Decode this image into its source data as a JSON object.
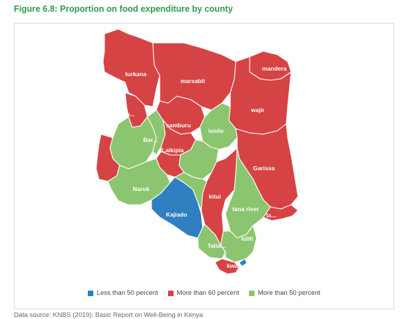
{
  "figure": {
    "title": "Figure 6.8: Proportion on food expenditure by county"
  },
  "colors": {
    "less_than_50": "#2f7fc1",
    "more_than_60": "#d64345",
    "more_than_50": "#8cc56f"
  },
  "map": {
    "labels": {
      "turkana": "turkana",
      "marsabit": "marsabit",
      "mandera": "mandera",
      "wajir": "wajir",
      "samburu": "samburu",
      "isiolo": "isiolo",
      "west_pokot": "w...",
      "baringo": "Bar...",
      "laikipia": "Laikipia",
      "garissa": "Garissa",
      "narok": "Narok",
      "kitui": "kitui",
      "tana_river": "tana river",
      "lamu": "la...",
      "kajiado": "Kajiado",
      "kilifi": "kilifi",
      "taita": "Taita...",
      "kwale": "kwale"
    }
  },
  "chart_data": {
    "type": "choropleth",
    "categories": [
      {
        "name": "Less than 50 percent",
        "color": "#2f7fc1"
      },
      {
        "name": "More than 60 percent",
        "color": "#d64345"
      },
      {
        "name": "More than 50 percent",
        "color": "#8cc56f"
      }
    ],
    "regions": [
      {
        "name": "turkana",
        "category": "More than 60 percent"
      },
      {
        "name": "marsabit",
        "category": "More than 60 percent"
      },
      {
        "name": "mandera",
        "category": "More than 60 percent"
      },
      {
        "name": "wajir",
        "category": "More than 60 percent"
      },
      {
        "name": "samburu",
        "category": "More than 60 percent"
      },
      {
        "name": "isiolo",
        "category": "More than 50 percent"
      },
      {
        "name": "w...",
        "category": "More than 60 percent"
      },
      {
        "name": "Bar...",
        "category": "More than 50 percent"
      },
      {
        "name": "Laikipia",
        "category": "More than 60 percent"
      },
      {
        "name": "Garissa",
        "category": "More than 60 percent"
      },
      {
        "name": "Narok",
        "category": "More than 50 percent"
      },
      {
        "name": "kitui",
        "category": "More than 60 percent"
      },
      {
        "name": "tana river",
        "category": "More than 50 percent"
      },
      {
        "name": "la...",
        "category": "More than 60 percent"
      },
      {
        "name": "Kajiado",
        "category": "Less than 50 percent"
      },
      {
        "name": "kilifi",
        "category": "More than 50 percent"
      },
      {
        "name": "Taita...",
        "category": "More than 50 percent"
      },
      {
        "name": "kwale",
        "category": "More than 60 percent"
      }
    ],
    "legend": [
      "Less than 50 percent",
      "More than 60 percent",
      "More than 50 percent"
    ]
  },
  "source": {
    "text": "Data source: KNBS (2019): Basic Report on Well-Being in Kenya"
  }
}
